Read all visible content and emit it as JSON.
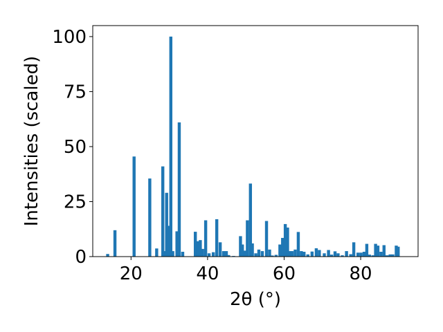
{
  "chart_data": {
    "type": "bar",
    "xlabel": "2θ (°)",
    "ylabel": "Intensities (scaled)",
    "xlim": [
      10,
      95
    ],
    "ylim": [
      0,
      105
    ],
    "x_ticks": [
      20,
      40,
      60,
      80
    ],
    "y_ticks": [
      0,
      25,
      50,
      75,
      100
    ],
    "x_tick_labels": [
      "20",
      "40",
      "60",
      "80"
    ],
    "y_tick_labels": [
      "0",
      "25",
      "50",
      "75",
      "100"
    ],
    "grid": false,
    "bar_color": "#1f77b4",
    "bar_width": 0.8,
    "x": [
      13.9,
      15.8,
      20.8,
      24.9,
      26.7,
      28.3,
      28.9,
      29.3,
      29.9,
      30.4,
      30.9,
      32.0,
      32.6,
      33.5,
      36.8,
      37.4,
      38.1,
      38.7,
      39.5,
      40.4,
      41.5,
      42.4,
      43.3,
      44.2,
      44.9,
      45.5,
      46.8,
      48.6,
      49.1,
      49.7,
      50.4,
      51.2,
      51.7,
      52.6,
      53.4,
      54.3,
      55.4,
      56.2,
      56.9,
      57.9,
      58.9,
      59.6,
      60.3,
      60.9,
      61.5,
      62.1,
      62.9,
      63.7,
      64.5,
      65.2,
      66.2,
      67.3,
      68.4,
      69.2,
      70.5,
      71.6,
      72.4,
      73.3,
      74.1,
      75.2,
      76.3,
      77.4,
      78.2,
      79.3,
      80.1,
      80.9,
      81.6,
      82.3,
      83.2,
      83.9,
      84.5,
      85.3,
      86.1,
      86.9,
      87.7,
      88.4,
      89.3,
      89.8
    ],
    "values": [
      1.2,
      12,
      45.5,
      35.5,
      3.7,
      41,
      2.5,
      29,
      14,
      100,
      2.5,
      11.5,
      61,
      2.2,
      11.3,
      7,
      7.5,
      3.5,
      16.5,
      1.5,
      2,
      17,
      6.5,
      2.5,
      2.5,
      0.7,
      0.3,
      9.3,
      5.5,
      2.7,
      16.5,
      33.2,
      6,
      1.5,
      3.2,
      2.5,
      16.2,
      3.2,
      0.5,
      0.8,
      5.5,
      8.5,
      14.8,
      13.2,
      2.5,
      2.5,
      3.2,
      11.2,
      2.5,
      2.2,
      1,
      2.3,
      3.8,
      3,
      1.5,
      3,
      0.9,
      2.4,
      1.5,
      0.6,
      2.5,
      1.1,
      6.5,
      1.8,
      1.8,
      2.2,
      5.8,
      0.9,
      0.6,
      5.8,
      5,
      2.2,
      5.2,
      0.6,
      1,
      1,
      5,
      4.5
    ]
  }
}
